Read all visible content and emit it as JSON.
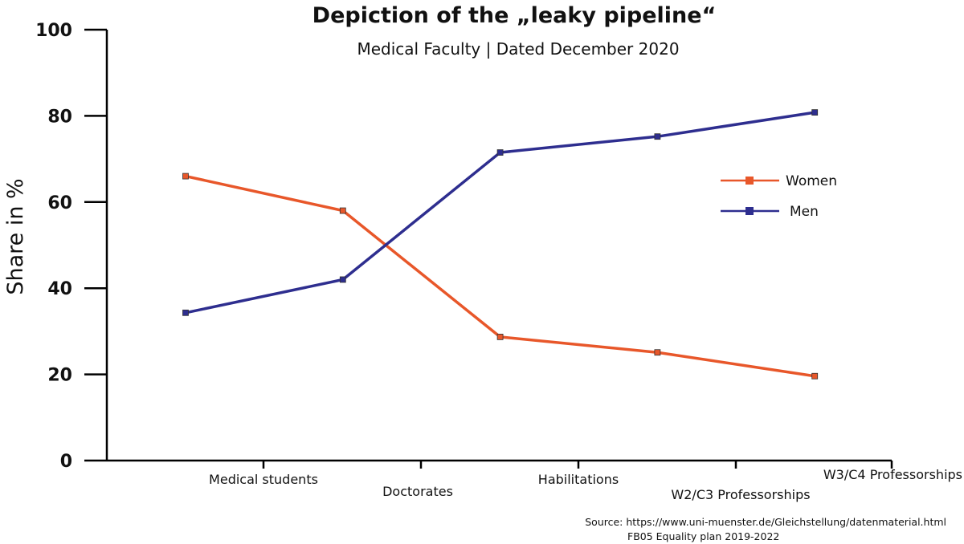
{
  "chart_data": {
    "type": "line",
    "title": "Depiction of the „leaky pipeline“",
    "subtitle": "Medical Faculty | Dated December 2020",
    "ylabel": "Share in %",
    "xlabel": "",
    "ylim": [
      0,
      100
    ],
    "yticks": [
      0,
      20,
      40,
      60,
      80,
      100
    ],
    "categories": [
      "Medical students",
      "Doctorates",
      "Habilitations",
      "W2/C3 Professorships",
      "W3/C4 Professorships"
    ],
    "series": [
      {
        "name": "Women",
        "color": "#e8572a",
        "values": [
          66,
          58,
          28.7,
          25.1,
          19.6
        ]
      },
      {
        "name": "Men",
        "color": "#2e2e8f",
        "values": [
          34.3,
          42,
          71.5,
          75.2,
          80.8
        ]
      }
    ],
    "grid": false,
    "legend": "right",
    "source": "Source: https://www.uni-muenster.de/Gleichstellung/datenmaterial.html",
    "source_note": "FB05 Equality plan 2019-2022"
  }
}
